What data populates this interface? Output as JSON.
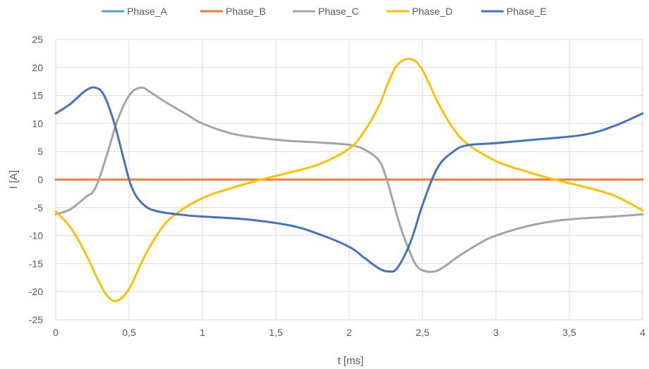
{
  "chart_data": {
    "type": "line",
    "title": "",
    "xlabel": "t [ms]",
    "ylabel": "I [A]",
    "xlim": [
      0,
      4
    ],
    "ylim": [
      -25,
      25
    ],
    "x_ticks": [
      0,
      0.5,
      1,
      1.5,
      2,
      2.5,
      3,
      3.5,
      4
    ],
    "x_tick_labels": [
      "0",
      "0,5",
      "1",
      "1,5",
      "2",
      "2,5",
      "3",
      "3,5",
      "4"
    ],
    "y_ticks": [
      -25,
      -20,
      -15,
      -10,
      -5,
      0,
      5,
      10,
      15,
      20,
      25
    ],
    "y_tick_labels": [
      "-25",
      "-20",
      "-15",
      "-10",
      "-5",
      "0",
      "5",
      "10",
      "15",
      "20",
      "25"
    ],
    "grid": true,
    "legend_position": "top",
    "series": [
      {
        "name": "Phase_A",
        "color": "#5b9bd5",
        "x": [
          0,
          4
        ],
        "y": [
          0,
          0
        ]
      },
      {
        "name": "Phase_B",
        "color": "#ed7d31",
        "x": [
          0,
          0.5,
          1,
          1.5,
          2,
          2.5,
          3,
          3.5,
          4
        ],
        "y": [
          0,
          0,
          0,
          0,
          0,
          0,
          0,
          0,
          0
        ]
      },
      {
        "name": "Phase_C",
        "color": "#a5a5a5",
        "x": [
          0,
          0.1,
          0.2,
          0.27,
          0.35,
          0.42,
          0.5,
          0.58,
          0.65,
          0.75,
          0.9,
          1,
          1.2,
          1.4,
          1.6,
          1.8,
          2,
          2.1,
          2.2,
          2.25,
          2.3,
          2.35,
          2.4,
          2.45,
          2.5,
          2.58,
          2.65,
          2.75,
          2.9,
          3,
          3.2,
          3.4,
          3.6,
          3.8,
          4
        ],
        "y": [
          -6.2,
          -5.3,
          -3.2,
          -1.5,
          4.5,
          10.5,
          15,
          16.4,
          15.5,
          13.8,
          11.5,
          10,
          8.2,
          7.4,
          6.9,
          6.6,
          6.2,
          5.4,
          3.5,
          0.5,
          -4,
          -8.5,
          -12,
          -15,
          -16.2,
          -16.4,
          -15.5,
          -13.6,
          -11.2,
          -10,
          -8.4,
          -7.4,
          -6.9,
          -6.6,
          -6.2
        ]
      },
      {
        "name": "Phase_D",
        "color": "#ffc000",
        "x": [
          0,
          0.1,
          0.2,
          0.3,
          0.36,
          0.42,
          0.5,
          0.6,
          0.7,
          0.8,
          1,
          1.2,
          1.4,
          1.6,
          1.8,
          2,
          2.1,
          2.2,
          2.27,
          2.33,
          2.42,
          2.5,
          2.6,
          2.7,
          2.8,
          3,
          3.2,
          3.4,
          3.6,
          3.8,
          4
        ],
        "y": [
          -5.7,
          -8.5,
          -13,
          -18.5,
          -21,
          -21.6,
          -19.5,
          -14,
          -9.5,
          -6.5,
          -3.3,
          -1.5,
          0,
          1.3,
          2.8,
          5.5,
          8.5,
          13,
          17.5,
          20.5,
          21.5,
          19.5,
          14,
          9.5,
          6.5,
          3.3,
          1.5,
          0,
          -1.3,
          -2.8,
          -5.5
        ]
      },
      {
        "name": "Phase_E",
        "color": "#4472c4",
        "x": [
          0,
          0.1,
          0.2,
          0.27,
          0.33,
          0.4,
          0.46,
          0.52,
          0.6,
          0.7,
          0.9,
          1,
          1.3,
          1.6,
          1.8,
          2,
          2.1,
          2.2,
          2.27,
          2.33,
          2.42,
          2.5,
          2.6,
          2.7,
          2.8,
          3,
          3.3,
          3.6,
          3.8,
          4
        ],
        "y": [
          11.8,
          13.5,
          15.8,
          16.4,
          15,
          10,
          4,
          -1.5,
          -4.5,
          -5.7,
          -6.4,
          -6.6,
          -7.1,
          -8.2,
          -9.8,
          -12,
          -13.9,
          -15.8,
          -16.4,
          -15.7,
          -11,
          -4.5,
          2,
          4.8,
          6.1,
          6.5,
          7.2,
          8,
          9.5,
          11.8
        ]
      }
    ]
  }
}
